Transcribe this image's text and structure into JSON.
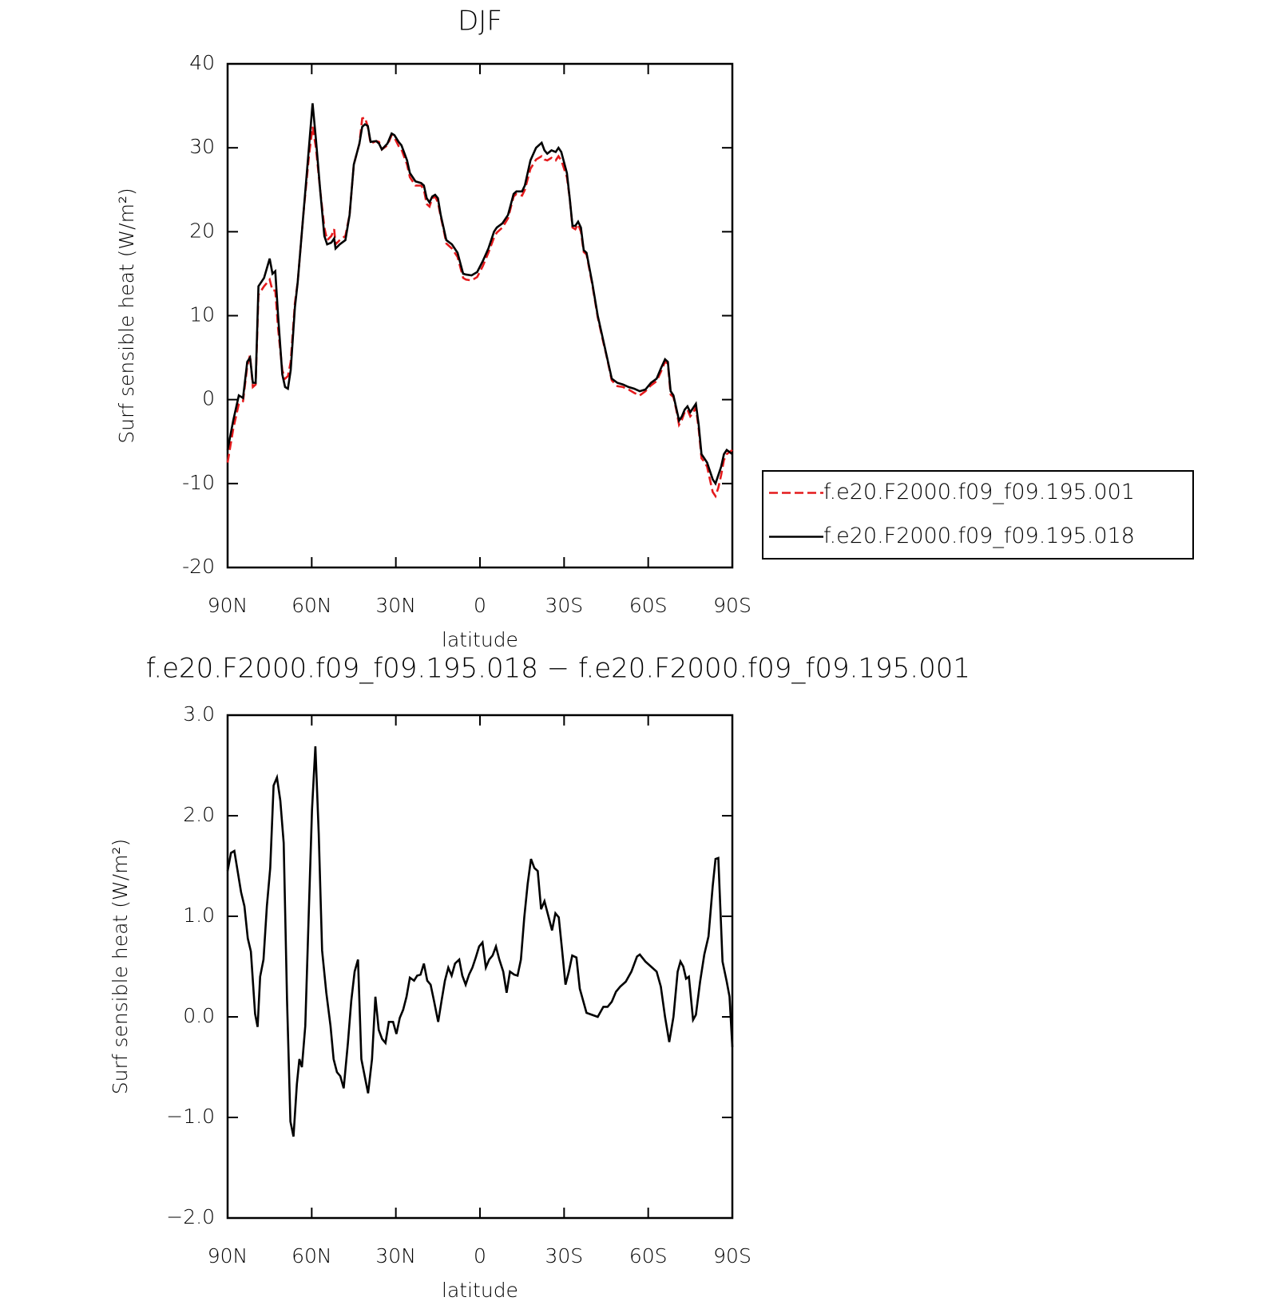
{
  "chart_data": [
    {
      "type": "line",
      "title": "DJF",
      "xlabel": "latitude",
      "ylabel": "Surf sensible heat (W/m²)",
      "xlim": [
        90,
        -90
      ],
      "xticks": [
        {
          "value": 90,
          "label": "90N"
        },
        {
          "value": 60,
          "label": "60N"
        },
        {
          "value": 30,
          "label": "30N"
        },
        0,
        {
          "value": -30,
          "label": "30S"
        },
        {
          "value": -60,
          "label": "60S"
        },
        {
          "value": -90,
          "label": "90S"
        }
      ],
      "ylim": [
        -20,
        40
      ],
      "yticks": [
        -20,
        -10,
        0,
        10,
        20,
        30,
        40
      ],
      "legend": "right",
      "x": [
        90,
        88,
        86,
        84.5,
        83,
        82,
        81,
        80,
        79,
        77,
        75,
        74,
        73,
        72,
        70.5,
        69.5,
        68.5,
        67.5,
        66,
        65,
        63,
        61,
        59.7,
        58.5,
        57,
        55.5,
        54.5,
        53,
        52,
        51.5,
        50,
        48,
        46.5,
        45,
        43,
        42,
        41,
        40,
        39,
        37,
        36,
        35,
        33,
        31.5,
        30.5,
        29,
        28,
        26,
        25,
        23,
        21,
        20,
        19,
        18,
        17,
        16,
        15,
        14,
        13,
        12,
        10,
        8,
        6,
        5,
        3,
        1,
        -1,
        -3,
        -5,
        -6,
        -8,
        -10,
        -12,
        -13,
        -15,
        -16,
        -18,
        -20,
        -22,
        -23,
        -24,
        -25.5,
        -27,
        -28,
        -29,
        -31,
        -32,
        -33,
        -34,
        -35,
        -36,
        -37,
        -38,
        -40,
        -42,
        -44,
        -45,
        -47,
        -49,
        -51,
        -53,
        -55,
        -57,
        -59,
        -61,
        -63,
        -64.5,
        -66,
        -67,
        -68,
        -69,
        -70,
        -71,
        -72,
        -73,
        -74,
        -75,
        -76,
        -77,
        -78,
        -79,
        -80,
        -81,
        -82,
        -83,
        -84,
        -85,
        -86,
        -87,
        -88,
        -90
      ],
      "series": [
        {
          "name": "f.e20.F2000.f09_f09.195.001",
          "color": "#e41a1c",
          "line_style": "dashed",
          "values": [
            -7.5,
            -3.5,
            -0.5,
            -0.2,
            4,
            5.3,
            1.5,
            1.8,
            12.5,
            13.5,
            14.3,
            13,
            13,
            8.5,
            3.5,
            2.5,
            2.8,
            4.5,
            11.5,
            14,
            22,
            29,
            32.5,
            30,
            25,
            20.5,
            19,
            19.5,
            20.3,
            18.5,
            19,
            19.5,
            22,
            28,
            30.5,
            33.5,
            33.6,
            32.5,
            30.5,
            30.8,
            30.7,
            29.8,
            30.3,
            31.5,
            31.2,
            30.2,
            29.8,
            28,
            26.5,
            25.5,
            25.5,
            25,
            23.3,
            23,
            24,
            24.2,
            23.5,
            21.8,
            20.3,
            18.6,
            18,
            17,
            14.5,
            14.3,
            14.2,
            14.6,
            15.9,
            17.5,
            19.3,
            19.9,
            20.5,
            21.6,
            24.2,
            24.5,
            24.3,
            25,
            27.5,
            28.6,
            29,
            28.6,
            28.5,
            28.8,
            28.5,
            29,
            28.5,
            26.5,
            24,
            20.5,
            20.3,
            20.9,
            20,
            17.6,
            17.3,
            13.8,
            9.8,
            6.8,
            5.4,
            2.3,
            1.6,
            1.5,
            1.2,
            0.8,
            0.5,
            1,
            1.7,
            2.2,
            3.3,
            4.5,
            4.3,
            0.6,
            0.3,
            -1.2,
            -3,
            -2.4,
            -1.5,
            -1.2,
            -2,
            -1.6,
            -0.9,
            -3.5,
            -7,
            -7.4,
            -8,
            -9.5,
            -11,
            -11.5,
            -10.5,
            -9,
            -7.2,
            -6.5,
            -6
          ]
        },
        {
          "name": "f.e20.F2000.f09_f09.195.018",
          "color": "#000000",
          "line_style": "solid",
          "values": [
            -6,
            -2.5,
            0.5,
            0.2,
            4.5,
            5,
            2,
            2,
            13.5,
            14.5,
            16.8,
            15,
            15.3,
            10,
            3,
            1.5,
            1.3,
            3.5,
            11,
            14,
            22,
            30,
            35.3,
            31,
            25,
            19.5,
            18.5,
            18.7,
            19.2,
            18,
            18.5,
            19,
            22,
            28,
            30.5,
            32.5,
            32.8,
            32.6,
            30.7,
            30.8,
            30.5,
            29.8,
            30.5,
            31.7,
            31.5,
            30.7,
            30.3,
            28.5,
            27,
            26,
            25.8,
            25.5,
            24,
            23.5,
            24.2,
            24.4,
            24,
            22,
            20.5,
            19,
            18.5,
            17.5,
            15,
            14.9,
            14.8,
            15.2,
            16.5,
            18,
            20,
            20.5,
            21,
            22,
            24.5,
            24.8,
            24.8,
            25.5,
            28.5,
            30,
            30.6,
            29.7,
            29.3,
            29.7,
            29.5,
            30,
            29.5,
            27,
            24,
            20.7,
            20.7,
            21.2,
            20.5,
            17.8,
            17.5,
            14,
            10,
            7,
            5.5,
            2.5,
            2,
            1.8,
            1.5,
            1.3,
            1,
            1.2,
            2,
            2.5,
            3.7,
            4.8,
            4.5,
            1,
            0.5,
            -1,
            -2.5,
            -2,
            -1.2,
            -0.8,
            -1.5,
            -1,
            -0.5,
            -3,
            -6.5,
            -7,
            -7.5,
            -8.5,
            -9.5,
            -10,
            -9,
            -8,
            -6.5,
            -6,
            -6.5
          ]
        }
      ]
    },
    {
      "type": "line",
      "title": "f.e20.F2000.f09_f09.195.018 − f.e20.F2000.f09_f09.195.001",
      "xlabel": "latitude",
      "ylabel": "Surf sensible heat (W/m²)",
      "xlim": [
        90,
        -90
      ],
      "xticks": [
        {
          "value": 90,
          "label": "90N"
        },
        {
          "value": 60,
          "label": "60N"
        },
        {
          "value": 30,
          "label": "30N"
        },
        0,
        {
          "value": -30,
          "label": "30S"
        },
        {
          "value": -60,
          "label": "60S"
        },
        {
          "value": -90,
          "label": "90S"
        }
      ],
      "ylim": [
        -2,
        3
      ],
      "yticks": [
        {
          "value": -2,
          "label": "−2.0"
        },
        {
          "value": -1,
          "label": "−1.0"
        },
        {
          "value": 0,
          "label": "0.0"
        },
        {
          "value": 1,
          "label": "1.0"
        },
        {
          "value": 2,
          "label": "2.0"
        },
        {
          "value": 3,
          "label": "3.0"
        }
      ],
      "x": [
        90,
        88.8,
        87.6,
        85.2,
        84,
        82.8,
        81.7,
        80.2,
        79.3,
        78.4,
        77.2,
        76,
        74.8,
        73.6,
        72.4,
        71.2,
        70,
        68.8,
        67.6,
        66.5,
        65.3,
        64.4,
        63.5,
        62.3,
        61.1,
        59.9,
        58.7,
        57.5,
        56.3,
        54.8,
        53.3,
        52.2,
        51,
        49.8,
        48.6,
        47.1,
        45.9,
        44.7,
        43.5,
        42.3,
        41.1,
        39.9,
        38.5,
        37.3,
        36.1,
        34.9,
        33.7,
        32.5,
        31,
        29.8,
        28.6,
        27.4,
        26.2,
        25,
        23.5,
        22.4,
        21.2,
        20,
        18.8,
        17.6,
        16.4,
        14.9,
        13.7,
        12.5,
        11.3,
        10.1,
        8.9,
        7.4,
        6.3,
        5.1,
        3.9,
        2.7,
        1.5,
        0.3,
        -0.9,
        -2.1,
        -3.3,
        -4.5,
        -5.7,
        -6.9,
        -8.3,
        -9.5,
        -10.7,
        -12.2,
        -13.4,
        -14.6,
        -15.8,
        -17,
        -18.2,
        -19.4,
        -20.6,
        -21.8,
        -23,
        -24.5,
        -25.7,
        -26.9,
        -28.1,
        -29.3,
        -30.5,
        -31.7,
        -32.9,
        -34.4,
        -35.6,
        -38,
        -40,
        -42,
        -44,
        -45.5,
        -47,
        -48.5,
        -50,
        -52,
        -54,
        -56,
        -57,
        -59,
        -61,
        -63,
        -64.5,
        -66,
        -67.5,
        -69,
        -70.5,
        -71.5,
        -72.5,
        -73.5,
        -74.5,
        -76,
        -77,
        -78.5,
        -80,
        -81.5,
        -83,
        -84,
        -85,
        -86.5,
        -88,
        -89,
        -90
      ],
      "series": [
        {
          "name": null,
          "color": "#000000",
          "line_style": "solid",
          "values": [
            1.45,
            1.63,
            1.65,
            1.24,
            1.1,
            0.78,
            0.65,
            0.03,
            -0.1,
            0.4,
            0.57,
            1.1,
            1.48,
            2.3,
            2.38,
            2.15,
            1.73,
            0.16,
            -1.04,
            -1.19,
            -0.67,
            -0.42,
            -0.5,
            -0.09,
            0.99,
            2.06,
            2.69,
            1.82,
            0.66,
            0.24,
            -0.09,
            -0.42,
            -0.55,
            -0.59,
            -0.71,
            -0.26,
            0.16,
            0.45,
            0.57,
            -0.42,
            -0.59,
            -0.76,
            -0.42,
            0.2,
            -0.13,
            -0.22,
            -0.26,
            -0.05,
            -0.05,
            -0.17,
            -0.01,
            0.07,
            0.2,
            0.39,
            0.36,
            0.41,
            0.42,
            0.53,
            0.36,
            0.32,
            0.16,
            -0.05,
            0.16,
            0.36,
            0.49,
            0.41,
            0.53,
            0.57,
            0.41,
            0.32,
            0.42,
            0.49,
            0.59,
            0.7,
            0.74,
            0.49,
            0.57,
            0.61,
            0.7,
            0.57,
            0.45,
            0.24,
            0.45,
            0.42,
            0.41,
            0.57,
            0.99,
            1.32,
            1.57,
            1.48,
            1.45,
            1.07,
            1.15,
            0.99,
            0.86,
            1.03,
            0.99,
            0.66,
            0.32,
            0.45,
            0.61,
            0.59,
            0.28,
            0.04,
            0.02,
            0,
            0.1,
            0.1,
            0.15,
            0.25,
            0.3,
            0.35,
            0.45,
            0.6,
            0.62,
            0.55,
            0.5,
            0.45,
            0.3,
            0,
            -0.25,
            0,
            0.45,
            0.55,
            0.5,
            0.38,
            0.4,
            -0.03,
            0.02,
            0.35,
            0.62,
            0.8,
            1.3,
            1.57,
            1.58,
            0.55,
            0.35,
            0.2,
            -0.3
          ]
        }
      ]
    }
  ]
}
